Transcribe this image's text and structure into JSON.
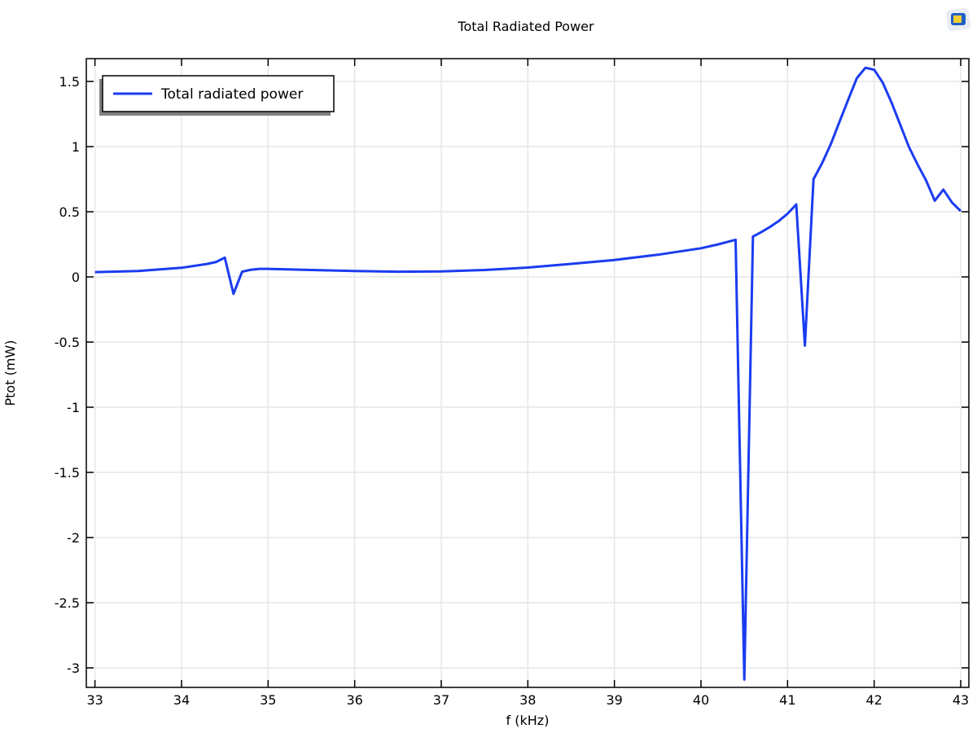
{
  "chart_data": {
    "type": "line",
    "title": "Total Radiated Power",
    "xlabel": "f (kHz)",
    "ylabel": "Ptot (mW)",
    "xlim": [
      32.9,
      43.094
    ],
    "ylim": [
      -3.15,
      1.675
    ],
    "xticks": [
      33,
      34,
      35,
      36,
      37,
      38,
      39,
      40,
      41,
      42,
      43
    ],
    "yticks": [
      1.5,
      1,
      0.5,
      0,
      -0.5,
      -1,
      -1.5,
      -2,
      -2.5,
      -3
    ],
    "grid": true,
    "legend_position": "top-left",
    "series": [
      {
        "name": "Total radiated power",
        "color": "#1a3cf0",
        "x": [
          33,
          33.5,
          34,
          34.3,
          34.4,
          34.5,
          34.6,
          34.7,
          34.8,
          34.9,
          35,
          35.5,
          36,
          36.5,
          37,
          37.5,
          38,
          38.5,
          39,
          39.5,
          40,
          40.2,
          40.4,
          40.5,
          40.6,
          40.7,
          40.8,
          40.9,
          41.0,
          41.1,
          41.2,
          41.3,
          41.4,
          41.5,
          41.6,
          41.7,
          41.8,
          41.9,
          42.0,
          42.1,
          42.2,
          42.3,
          42.4,
          42.5,
          42.6,
          42.7,
          42.8,
          42.9,
          43.0
        ],
        "y": [
          0.037,
          0.045,
          0.07,
          0.1,
          0.115,
          0.148,
          -0.13,
          0.04,
          0.055,
          0.062,
          0.062,
          0.053,
          0.045,
          0.04,
          0.042,
          0.053,
          0.072,
          0.1,
          0.13,
          0.17,
          0.22,
          0.25,
          0.285,
          -3.09,
          0.31,
          0.345,
          0.385,
          0.43,
          0.485,
          0.556,
          -0.527,
          0.75,
          0.875,
          1.02,
          1.19,
          1.36,
          1.525,
          1.605,
          1.59,
          1.49,
          1.34,
          1.17,
          1.0,
          0.865,
          0.74,
          0.585,
          0.67,
          0.57,
          0.505
        ]
      }
    ]
  }
}
